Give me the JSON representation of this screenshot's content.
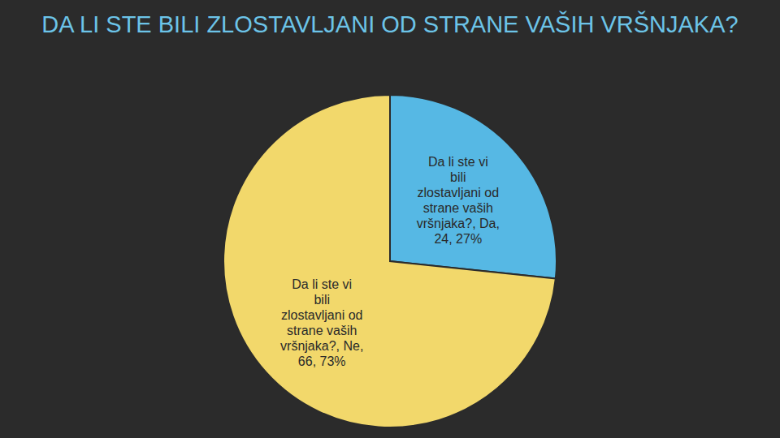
{
  "chart_data": {
    "type": "pie",
    "title": "DA LI STE BILI ZLOSTAVLJANI OD STRANE VAŠIH VRŠNJAKA?",
    "categories": [
      "Da",
      "Ne"
    ],
    "values": [
      24,
      66
    ],
    "value_labels": [
      "Da li ste vi bili zlostavljani od strane vaših vršnjaka?, Da, 24, 27%",
      "Da li ste vi bili zlostavljani od strane vaših vršnjaka?, Ne, 66, 73%"
    ],
    "colors": [
      "#56b8e4",
      "#f2d86b"
    ],
    "data_labels": true
  }
}
